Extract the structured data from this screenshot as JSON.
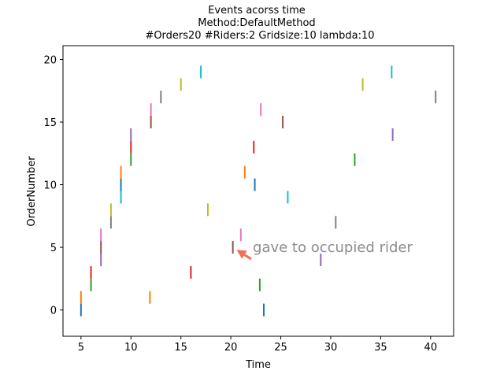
{
  "chart_data": {
    "type": "scatter",
    "marker": "vertical-line",
    "title_lines": [
      "Events acorss time",
      "Method:DefaultMethod",
      "#Orders20  #Riders:2  Gridsize:10  lambda:10"
    ],
    "xlabel": "Time",
    "ylabel": "OrderNumber",
    "xlim": [
      3.2,
      42.3
    ],
    "ylim": [
      -2.1,
      21.1
    ],
    "xticks": [
      5,
      10,
      15,
      20,
      25,
      30,
      35,
      40
    ],
    "yticks": [
      0,
      5,
      10,
      15,
      20
    ],
    "grid": false,
    "annotation": {
      "text": "gave to occupied rider",
      "x": 20.1,
      "y": 5,
      "text_x": 22.2,
      "text_y": 5,
      "arrow_color": "#f0705a",
      "text_color": "#8c8c8c"
    },
    "points": [
      {
        "x": 5.0,
        "y": 0,
        "color": "#1f77b4"
      },
      {
        "x": 23.3,
        "y": 0,
        "color": "#1f77b4"
      },
      {
        "x": 5.0,
        "y": 1,
        "color": "#ff7f0e"
      },
      {
        "x": 11.9,
        "y": 1,
        "color": "#ff7f0e"
      },
      {
        "x": 6.0,
        "y": 2,
        "color": "#2ca02c"
      },
      {
        "x": 22.9,
        "y": 2,
        "color": "#2ca02c"
      },
      {
        "x": 6.0,
        "y": 3,
        "color": "#d62728"
      },
      {
        "x": 16.0,
        "y": 3,
        "color": "#d62728"
      },
      {
        "x": 7.0,
        "y": 4,
        "color": "#9467bd"
      },
      {
        "x": 29.0,
        "y": 4,
        "color": "#9467bd"
      },
      {
        "x": 7.0,
        "y": 5,
        "color": "#8c564b"
      },
      {
        "x": 20.2,
        "y": 5,
        "color": "#8c564b"
      },
      {
        "x": 7.0,
        "y": 6,
        "color": "#e377c2"
      },
      {
        "x": 21.0,
        "y": 6,
        "color": "#e377c2"
      },
      {
        "x": 8.0,
        "y": 7,
        "color": "#7f7f7f"
      },
      {
        "x": 30.5,
        "y": 7,
        "color": "#7f7f7f"
      },
      {
        "x": 8.0,
        "y": 8,
        "color": "#bcbd22"
      },
      {
        "x": 17.7,
        "y": 8,
        "color": "#bcbd22"
      },
      {
        "x": 9.0,
        "y": 9,
        "color": "#17becf"
      },
      {
        "x": 25.7,
        "y": 9,
        "color": "#17becf"
      },
      {
        "x": 9.0,
        "y": 10,
        "color": "#1f77b4"
      },
      {
        "x": 22.4,
        "y": 10,
        "color": "#1f77b4"
      },
      {
        "x": 9.0,
        "y": 11,
        "color": "#ff7f0e"
      },
      {
        "x": 21.4,
        "y": 11,
        "color": "#ff7f0e"
      },
      {
        "x": 10.0,
        "y": 12,
        "color": "#2ca02c"
      },
      {
        "x": 32.4,
        "y": 12,
        "color": "#2ca02c"
      },
      {
        "x": 10.0,
        "y": 13,
        "color": "#d62728"
      },
      {
        "x": 22.3,
        "y": 13,
        "color": "#d62728"
      },
      {
        "x": 10.0,
        "y": 14,
        "color": "#9467bd"
      },
      {
        "x": 36.2,
        "y": 14,
        "color": "#9467bd"
      },
      {
        "x": 12.0,
        "y": 15,
        "color": "#8c564b"
      },
      {
        "x": 25.2,
        "y": 15,
        "color": "#8c564b"
      },
      {
        "x": 12.0,
        "y": 16,
        "color": "#e377c2"
      },
      {
        "x": 23.0,
        "y": 16,
        "color": "#e377c2"
      },
      {
        "x": 13.0,
        "y": 17,
        "color": "#7f7f7f"
      },
      {
        "x": 40.5,
        "y": 17,
        "color": "#7f7f7f"
      },
      {
        "x": 15.0,
        "y": 18,
        "color": "#bcbd22"
      },
      {
        "x": 33.2,
        "y": 18,
        "color": "#bcbd22"
      },
      {
        "x": 17.0,
        "y": 19,
        "color": "#17becf"
      },
      {
        "x": 36.1,
        "y": 19,
        "color": "#17becf"
      }
    ]
  }
}
